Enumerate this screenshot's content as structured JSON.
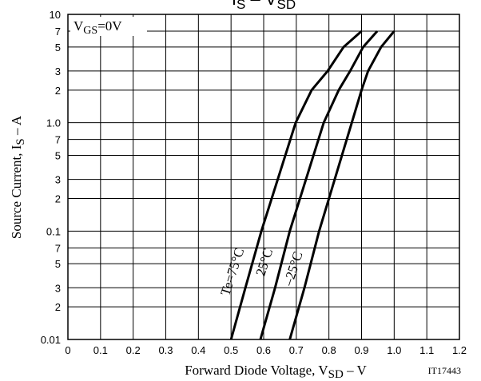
{
  "chart_data": {
    "type": "line",
    "title_parts": [
      "I",
      "S",
      " – V",
      "SD"
    ],
    "xlabel_parts": [
      "Forward Diode Voltage, V",
      "SD",
      " – V"
    ],
    "ylabel_parts": [
      "Source Current, I",
      "S",
      " – A"
    ],
    "condition_parts": [
      "V",
      "GS",
      "=0V"
    ],
    "code": "IT17443",
    "log_y": true,
    "grid": true,
    "xlim": [
      0,
      1.2
    ],
    "xticks": [
      0,
      0.1,
      0.2,
      0.3,
      0.4,
      0.5,
      0.6,
      0.7,
      0.8,
      0.9,
      {
        "value": 1,
        "label": "1.0"
      },
      1.1,
      1.2
    ],
    "ylim": [
      0.01,
      10
    ],
    "yticks": [
      0.01,
      {
        "value": 0.02,
        "label": "2"
      },
      {
        "value": 0.03,
        "label": "3"
      },
      {
        "value": 0.05,
        "label": "5"
      },
      {
        "value": 0.07,
        "label": "7"
      },
      0.1,
      {
        "value": 0.2,
        "label": "2"
      },
      {
        "value": 0.3,
        "label": "3"
      },
      {
        "value": 0.5,
        "label": "5"
      },
      {
        "value": 0.7,
        "label": "7"
      },
      {
        "value": 1,
        "label": "1.0"
      },
      {
        "value": 2,
        "label": "2"
      },
      {
        "value": 3,
        "label": "3"
      },
      {
        "value": 5,
        "label": "5"
      },
      {
        "value": 7,
        "label": "7"
      },
      10
    ],
    "series": [
      {
        "name": "Te=75°C",
        "color": "#000000",
        "x": [
          0.5,
          0.544,
          0.593,
          0.698,
          0.747,
          0.796,
          0.845,
          0.9
        ],
        "values": [
          0.01,
          0.03,
          0.1,
          1,
          2,
          3,
          5,
          7
        ]
      },
      {
        "name": "25°C",
        "color": "#000000",
        "x": [
          0.59,
          0.635,
          0.68,
          0.784,
          0.83,
          0.865,
          0.905,
          0.948
        ],
        "values": [
          0.01,
          0.03,
          0.1,
          1,
          2,
          3,
          5,
          7
        ]
      },
      {
        "name": "–25°C",
        "color": "#000000",
        "x": [
          0.68,
          0.725,
          0.77,
          0.87,
          0.9,
          0.92,
          0.96,
          1.0
        ],
        "values": [
          0.01,
          0.03,
          0.1,
          1,
          2,
          3,
          5,
          7
        ]
      }
    ]
  }
}
